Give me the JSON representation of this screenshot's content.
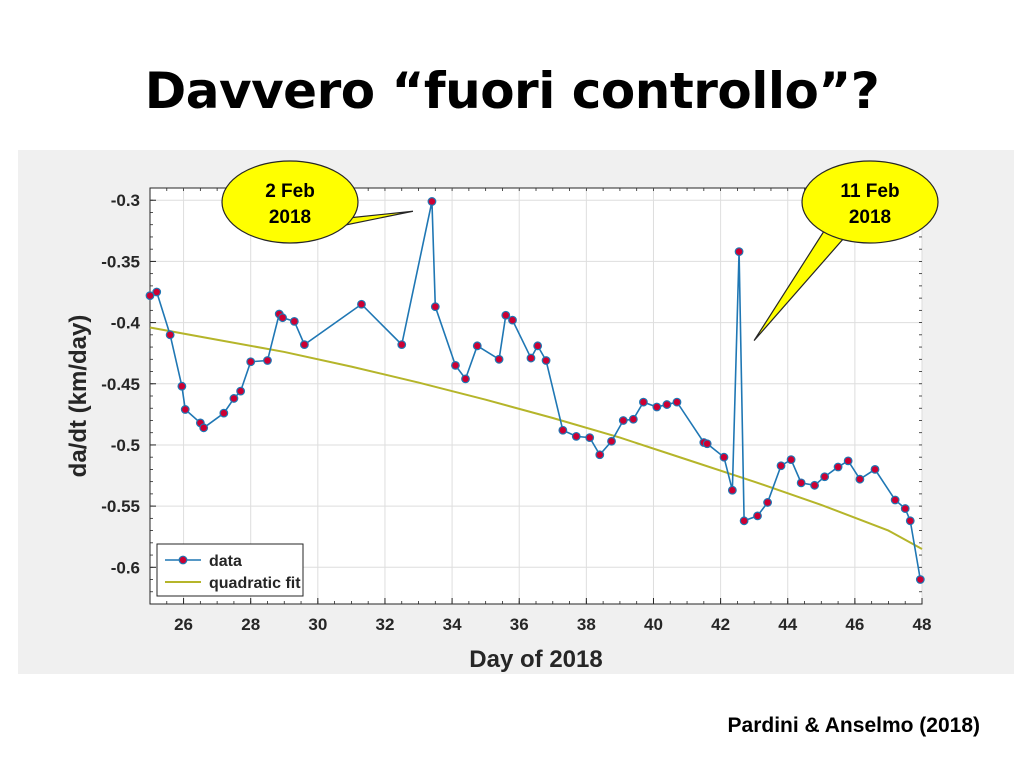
{
  "slide": {
    "title": "Davvero “fuori controllo”?",
    "citation": "Pardini & Anselmo (2018)"
  },
  "callouts": [
    {
      "line1": "2 Feb",
      "line2": "2018",
      "fill": "#ffff00",
      "x": 33.4,
      "y": -0.3
    },
    {
      "line1": "11 Feb",
      "line2": "2018",
      "fill": "#ffff00",
      "x": 42.55,
      "y": -0.342
    }
  ],
  "chart_data": {
    "type": "line",
    "xlabel": "Day of 2018",
    "ylabel": "da/dt (km/day)",
    "xlim": [
      25,
      48
    ],
    "ylim": [
      -0.63,
      -0.29
    ],
    "xticks": [
      26,
      28,
      30,
      32,
      34,
      36,
      38,
      40,
      42,
      44,
      46,
      48
    ],
    "yticks": [
      -0.3,
      -0.35,
      -0.4,
      -0.45,
      -0.5,
      -0.55,
      -0.6
    ],
    "grid": true,
    "legend_position": "bottom-left",
    "series": [
      {
        "name": "data",
        "color": "#1f77b4",
        "marker_color": "#cc0033",
        "points": [
          [
            25.0,
            -0.378
          ],
          [
            25.2,
            -0.375
          ],
          [
            25.6,
            -0.41
          ],
          [
            25.95,
            -0.452
          ],
          [
            26.05,
            -0.471
          ],
          [
            26.5,
            -0.482
          ],
          [
            26.6,
            -0.486
          ],
          [
            27.2,
            -0.474
          ],
          [
            27.5,
            -0.462
          ],
          [
            27.7,
            -0.456
          ],
          [
            28.0,
            -0.432
          ],
          [
            28.5,
            -0.431
          ],
          [
            28.85,
            -0.393
          ],
          [
            28.95,
            -0.396
          ],
          [
            29.3,
            -0.399
          ],
          [
            29.6,
            -0.418
          ],
          [
            31.3,
            -0.385
          ],
          [
            32.5,
            -0.418
          ],
          [
            33.4,
            -0.301
          ],
          [
            33.5,
            -0.387
          ],
          [
            34.1,
            -0.435
          ],
          [
            34.4,
            -0.446
          ],
          [
            34.75,
            -0.419
          ],
          [
            35.4,
            -0.43
          ],
          [
            35.6,
            -0.394
          ],
          [
            35.8,
            -0.398
          ],
          [
            36.35,
            -0.429
          ],
          [
            36.55,
            -0.419
          ],
          [
            36.8,
            -0.431
          ],
          [
            37.3,
            -0.488
          ],
          [
            37.7,
            -0.493
          ],
          [
            38.1,
            -0.494
          ],
          [
            38.4,
            -0.508
          ],
          [
            38.75,
            -0.497
          ],
          [
            39.1,
            -0.48
          ],
          [
            39.4,
            -0.479
          ],
          [
            39.7,
            -0.465
          ],
          [
            40.1,
            -0.469
          ],
          [
            40.4,
            -0.467
          ],
          [
            40.7,
            -0.465
          ],
          [
            41.5,
            -0.498
          ],
          [
            41.6,
            -0.499
          ],
          [
            42.1,
            -0.51
          ],
          [
            42.35,
            -0.537
          ],
          [
            42.55,
            -0.342
          ],
          [
            42.7,
            -0.562
          ],
          [
            43.1,
            -0.558
          ],
          [
            43.4,
            -0.547
          ],
          [
            43.8,
            -0.517
          ],
          [
            44.1,
            -0.512
          ],
          [
            44.4,
            -0.531
          ],
          [
            44.8,
            -0.533
          ],
          [
            45.1,
            -0.526
          ],
          [
            45.5,
            -0.518
          ],
          [
            45.8,
            -0.513
          ],
          [
            46.15,
            -0.528
          ],
          [
            46.6,
            -0.52
          ],
          [
            47.2,
            -0.545
          ],
          [
            47.5,
            -0.552
          ],
          [
            47.65,
            -0.562
          ],
          [
            47.95,
            -0.61
          ]
        ]
      },
      {
        "name": "quadratic fit",
        "color": "#b5b52a",
        "points": [
          [
            25.0,
            -0.404
          ],
          [
            27.0,
            -0.414
          ],
          [
            29.0,
            -0.424
          ],
          [
            31.0,
            -0.436
          ],
          [
            33.0,
            -0.449
          ],
          [
            35.0,
            -0.463
          ],
          [
            37.0,
            -0.478
          ],
          [
            39.0,
            -0.494
          ],
          [
            41.0,
            -0.512
          ],
          [
            43.0,
            -0.53
          ],
          [
            45.0,
            -0.549
          ],
          [
            47.0,
            -0.57
          ],
          [
            48.0,
            -0.585
          ]
        ]
      }
    ]
  }
}
